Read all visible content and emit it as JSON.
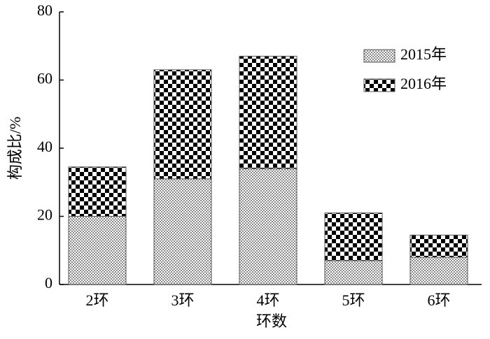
{
  "chart_data": {
    "type": "bar",
    "stacked": true,
    "x_label": "环数",
    "y_label": "构成比/%",
    "categories": [
      "2环",
      "3环",
      "4环",
      "5环",
      "6环"
    ],
    "series": [
      {
        "name": "2015年",
        "color": "#8a8a8a",
        "values": [
          20,
          31,
          34,
          7,
          8
        ]
      },
      {
        "name": "2016年",
        "color": "#000000",
        "values": [
          14.5,
          32,
          33,
          14,
          6.5
        ]
      }
    ],
    "ylim": [
      0,
      80
    ],
    "yticks": [
      0,
      20,
      40,
      60,
      80
    ],
    "legend": "upper right"
  }
}
